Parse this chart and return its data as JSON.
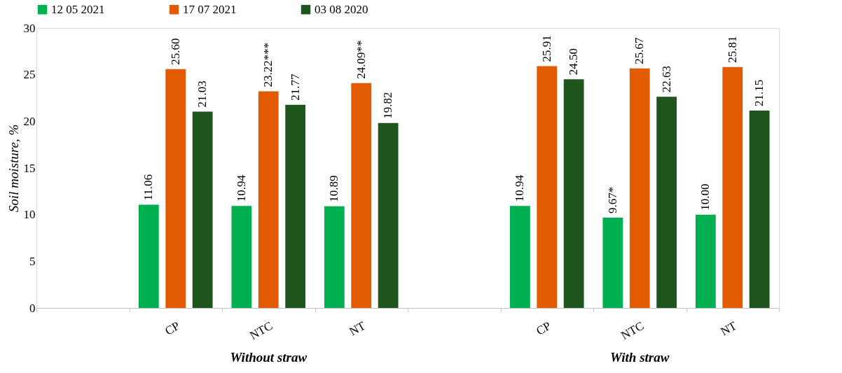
{
  "chart_data": {
    "type": "bar",
    "ylabel": "Soil moisture, %",
    "categories": [
      null,
      "CP",
      "NTC",
      "NT",
      null,
      "CP",
      "NTC",
      "NT"
    ],
    "series": [
      {
        "name": "12 05 2021",
        "color": "#00b050",
        "values": [
          null,
          11.06,
          10.94,
          10.89,
          null,
          10.94,
          9.67,
          10.0
        ],
        "value_labels": [
          null,
          "11.06",
          "10.94",
          "10.89",
          null,
          "10.94",
          "9.67*",
          "10.00"
        ]
      },
      {
        "name": "17 07 2021",
        "color": "#e35b00",
        "values": [
          null,
          25.6,
          23.22,
          24.09,
          null,
          25.91,
          25.67,
          25.81
        ],
        "value_labels": [
          null,
          "25.60",
          "23.22***",
          "24.09**",
          null,
          "25.91",
          "25.67",
          "25.81"
        ]
      },
      {
        "name": "03  08 2020",
        "color": "#1e561e",
        "values": [
          null,
          21.03,
          21.77,
          19.82,
          null,
          24.5,
          22.63,
          21.15
        ],
        "value_labels": [
          null,
          "21.03",
          "21.77",
          "19.82",
          null,
          "24.50",
          "22.63",
          "21.15"
        ]
      }
    ],
    "ylim": [
      0,
      30
    ],
    "yticks": [
      0,
      5,
      10,
      15,
      20,
      25,
      30
    ],
    "grid": false,
    "legend": "top",
    "annotations": [
      "Without straw",
      "With straw"
    ]
  }
}
